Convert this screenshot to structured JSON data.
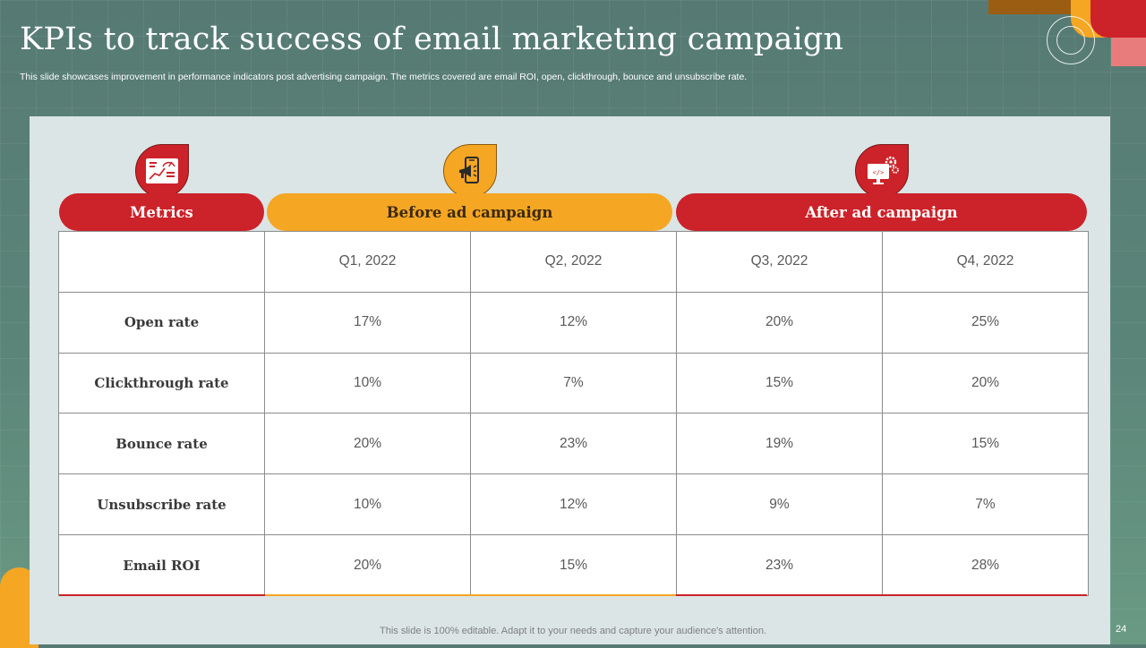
{
  "slide": {
    "title": "KPIs to track success of email marketing campaign",
    "subtitle": "This slide showcases improvement in performance indicators post advertising campaign. The metrics covered are email ROI, open, clickthrough, bounce and unsubscribe rate.",
    "footer": "This slide is 100% editable. Adapt it to your needs and capture your audience's attention.",
    "page_number": "24"
  },
  "headers": {
    "metrics": "Metrics",
    "before": "Before ad campaign",
    "after": "After ad campaign"
  },
  "icons": {
    "metrics": "dashboard-chart-icon",
    "before": "mobile-megaphone-icon",
    "after": "monitor-gears-icon"
  },
  "table": {
    "columns": [
      "Q1, 2022",
      "Q2, 2022",
      "Q3, 2022",
      "Q4, 2022"
    ],
    "rows": [
      {
        "label": "Open rate",
        "values": [
          "17%",
          "12%",
          "20%",
          "25%"
        ]
      },
      {
        "label": "Clickthrough rate",
        "values": [
          "10%",
          "7%",
          "15%",
          "20%"
        ]
      },
      {
        "label": "Bounce rate",
        "values": [
          "20%",
          "23%",
          "19%",
          "15%"
        ]
      },
      {
        "label": "Unsubscribe rate",
        "values": [
          "10%",
          "12%",
          "9%",
          "7%"
        ]
      },
      {
        "label": "Email ROI",
        "values": [
          "20%",
          "15%",
          "23%",
          "28%"
        ]
      }
    ]
  },
  "colors": {
    "red": "#cc2229",
    "orange": "#f5a623",
    "teal_background": "#567a73",
    "panel": "#dbe5e5"
  }
}
